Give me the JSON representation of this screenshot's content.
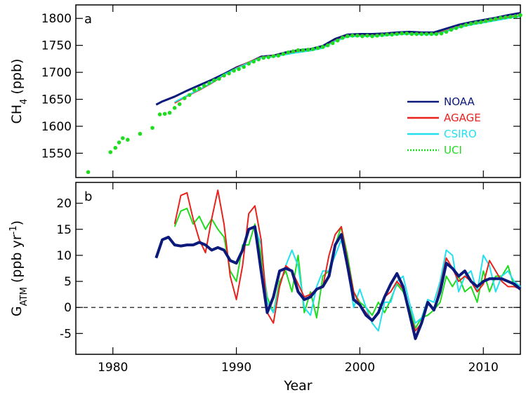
{
  "chart_data": [
    {
      "type": "line",
      "panel": "a",
      "ylabel_main": "CH",
      "ylabel_sub": "4",
      "ylabel_unit": " (ppb)",
      "xlim": [
        1977,
        2013
      ],
      "ylim": [
        1505,
        1825
      ],
      "yticks": [
        1550,
        1600,
        1650,
        1700,
        1750,
        1800
      ],
      "legend_position": "right",
      "series": [
        {
          "name": "NOAA",
          "color": "#0b1a7a",
          "style": "solid",
          "x": [
            1983.5,
            1984,
            1985,
            1986,
            1987,
            1988,
            1989,
            1990,
            1991,
            1992,
            1993,
            1994,
            1995,
            1996,
            1997,
            1998,
            1999,
            2000,
            2001,
            2002,
            2003,
            2004,
            2005,
            2006,
            2007,
            2008,
            2009,
            2010,
            2011,
            2012,
            2013
          ],
          "y": [
            1640,
            1646,
            1655,
            1666,
            1676,
            1686,
            1697,
            1709,
            1718,
            1729,
            1731,
            1737,
            1741,
            1743,
            1749,
            1762,
            1770,
            1771,
            1771,
            1772,
            1774,
            1775,
            1774,
            1774,
            1781,
            1788,
            1793,
            1797,
            1801,
            1806,
            1810
          ]
        },
        {
          "name": "AGAGE",
          "color": "#e8221c",
          "style": "solid",
          "x": [
            1985,
            1986,
            1987,
            1988,
            1989,
            1990,
            1991,
            1992,
            1993,
            1994,
            1995,
            1996,
            1997,
            1998,
            1999,
            2000,
            2001,
            2002,
            2003,
            2004,
            2005,
            2006,
            2007,
            2008,
            2009,
            2010,
            2011,
            2012,
            2013
          ],
          "y": [
            1643,
            1656,
            1667,
            1680,
            1695,
            1708,
            1719,
            1728,
            1730,
            1734,
            1738,
            1740,
            1746,
            1759,
            1767,
            1768,
            1768,
            1769,
            1771,
            1772,
            1771,
            1771,
            1777,
            1784,
            1789,
            1793,
            1797,
            1802,
            1805
          ]
        },
        {
          "name": "CSIRO",
          "color": "#22e0f0",
          "style": "solid",
          "x": [
            1985,
            1986,
            1987,
            1988,
            1989,
            1990,
            1991,
            1992,
            1993,
            1994,
            1995,
            1996,
            1997,
            1998,
            1999,
            2000,
            2001,
            2002,
            2003,
            2004,
            2005,
            2006,
            2007,
            2008,
            2009,
            2010,
            2011,
            2012,
            2013
          ],
          "y": [
            1645,
            1657,
            1668,
            1681,
            1696,
            1707,
            1718,
            1727,
            1729,
            1733,
            1737,
            1740,
            1745,
            1758,
            1766,
            1767,
            1767,
            1768,
            1770,
            1771,
            1770,
            1770,
            1776,
            1783,
            1788,
            1792,
            1796,
            1800,
            1804
          ]
        },
        {
          "name": "UCI",
          "color": "#1fdc1f",
          "style": "dotted",
          "points_x": [
            1978,
            1979.8,
            1980.2,
            1980.5,
            1980.8,
            1981.2,
            1982.2,
            1983.2,
            1983.8,
            1984.2,
            1984.6,
            1985,
            1985.4,
            1985.8,
            1986.2,
            1986.6,
            1987,
            1987.4,
            1987.8,
            1988.2,
            1988.6,
            1989,
            1989.4,
            1989.8,
            1990.2,
            1990.6,
            1991,
            1991.4,
            1991.8,
            1992.2,
            1992.6,
            1993,
            1993.4,
            1993.8,
            1994.2,
            1994.6,
            1995,
            1995.4,
            1995.8,
            1996.2,
            1996.6,
            1997,
            1997.4,
            1997.8,
            1998.2,
            1998.6,
            1999,
            1999.4,
            1999.8,
            2000.2,
            2000.6,
            2001,
            2001.4,
            2001.8,
            2002.2,
            2002.6,
            2003,
            2003.4,
            2003.8,
            2004.2,
            2004.6,
            2005,
            2005.4,
            2005.8,
            2006.2,
            2006.6,
            2007,
            2007.4,
            2007.8,
            2008.2,
            2008.6,
            2009,
            2009.4,
            2009.8,
            2010.2,
            2010.6,
            2011,
            2011.4,
            2011.8,
            2012.2,
            2012.6,
            2013
          ],
          "points_y": [
            1515,
            1552,
            1560,
            1570,
            1578,
            1575,
            1586,
            1597,
            1622,
            1623,
            1625,
            1634,
            1641,
            1652,
            1658,
            1667,
            1670,
            1675,
            1680,
            1685,
            1688,
            1694,
            1698,
            1703,
            1706,
            1710,
            1716,
            1720,
            1724,
            1727,
            1728,
            1730,
            1731,
            1734,
            1737,
            1739,
            1741,
            1741,
            1742,
            1743,
            1745,
            1747,
            1750,
            1754,
            1759,
            1764,
            1767,
            1768,
            1768,
            1767,
            1768,
            1767,
            1768,
            1769,
            1770,
            1770,
            1771,
            1772,
            1772,
            1771,
            1771,
            1771,
            1771,
            1771,
            1771,
            1772,
            1775,
            1779,
            1782,
            1785,
            1788,
            1790,
            1792,
            1793,
            1795,
            1797,
            1799,
            1801,
            1802,
            1803,
            1804,
            1806
          ]
        }
      ]
    },
    {
      "type": "line",
      "panel": "b",
      "ylabel_main": "G",
      "ylabel_sub": "ATM",
      "ylabel_unit": " (ppb yr",
      "ylabel_sup": "-1",
      "ylabel_close": ")",
      "xlabel": "Year",
      "xlim": [
        1977,
        2013
      ],
      "ylim": [
        -9,
        24
      ],
      "yticks": [
        -5,
        0,
        5,
        10,
        15,
        20
      ],
      "xticks": [
        1980,
        1990,
        2000,
        2010
      ],
      "zero_line": "dashed",
      "series": [
        {
          "name": "NOAA",
          "color": "#0b1a7a",
          "x": [
            1983.5,
            1984,
            1984.5,
            1985,
            1985.5,
            1986,
            1986.5,
            1987,
            1987.5,
            1988,
            1988.5,
            1989,
            1989.5,
            1990,
            1990.5,
            1991,
            1991.5,
            1992,
            1992.5,
            1993,
            1993.5,
            1994,
            1994.5,
            1995,
            1995.5,
            1996,
            1996.5,
            1997,
            1997.5,
            1998,
            1998.5,
            1999,
            1999.5,
            2000,
            2000.5,
            2001,
            2001.5,
            2002,
            2002.5,
            2003,
            2003.5,
            2004,
            2004.5,
            2005,
            2005.5,
            2006,
            2006.5,
            2007,
            2007.5,
            2008,
            2008.5,
            2009,
            2009.5,
            2010,
            2010.5,
            2011,
            2011.5,
            2012,
            2012.5,
            2013
          ],
          "y": [
            9.5,
            13,
            13.5,
            12,
            11.8,
            12,
            12,
            12.5,
            12,
            11,
            11.5,
            11,
            9,
            8.5,
            11,
            15,
            15.5,
            7,
            -1,
            2,
            7,
            7.5,
            7,
            3,
            1.5,
            2,
            3.5,
            4,
            6,
            12,
            14,
            8,
            1.5,
            0.5,
            -1.5,
            -2.5,
            -1,
            2,
            4.5,
            6.5,
            4,
            -1,
            -6,
            -3,
            1,
            -0.5,
            3,
            8.5,
            7.5,
            6,
            7,
            5,
            4,
            5,
            5.5,
            5.5,
            5.5,
            5,
            4.5,
            3.5
          ]
        },
        {
          "name": "AGAGE",
          "color": "#e8221c",
          "x": [
            1985,
            1985.5,
            1986,
            1986.5,
            1987,
            1987.5,
            1988,
            1988.5,
            1989,
            1989.5,
            1990,
            1990.5,
            1991,
            1991.5,
            1992,
            1992.5,
            1993,
            1993.5,
            1994,
            1994.5,
            1995,
            1995.5,
            1996,
            1996.5,
            1997,
            1997.5,
            1998,
            1998.5,
            1999,
            1999.5,
            2000,
            2000.5,
            2001,
            2001.5,
            2002,
            2002.5,
            2003,
            2003.5,
            2004,
            2004.5,
            2005,
            2005.5,
            2006,
            2006.5,
            2007,
            2007.5,
            2008,
            2008.5,
            2009,
            2009.5,
            2010,
            2010.5,
            2011,
            2011.5,
            2012,
            2012.5,
            2013
          ],
          "y": [
            16,
            21.5,
            22,
            17,
            13,
            10.5,
            17,
            22.5,
            16,
            6,
            1.5,
            8,
            18,
            19.5,
            13,
            -1,
            -3,
            4,
            8,
            7,
            4.5,
            2,
            2.5,
            3.5,
            4,
            10,
            14,
            15.5,
            9,
            3,
            0.5,
            -1,
            -2.5,
            -1,
            2,
            3,
            5,
            3.5,
            -1,
            -4.5,
            -3,
            1,
            -0.5,
            4,
            9.5,
            7.5,
            5,
            6,
            5,
            3,
            4.5,
            9,
            7,
            5,
            4,
            4,
            3.5
          ]
        },
        {
          "name": "CSIRO",
          "color": "#22e0f0",
          "x": [
            1991.5,
            1992,
            1992.5,
            1993,
            1993.5,
            1994,
            1994.5,
            1995,
            1995.5,
            1996,
            1996.5,
            1997,
            1997.5,
            1998,
            1998.5,
            1999,
            1999.5,
            2000,
            2000.5,
            2001,
            2001.5,
            2002,
            2002.5,
            2003,
            2003.5,
            2004,
            2004.5,
            2005,
            2005.5,
            2006,
            2006.5,
            2007,
            2007.5,
            2008,
            2008.5,
            2009,
            2009.5,
            2010,
            2010.5,
            2011,
            2011.5,
            2012,
            2012.5,
            2013
          ],
          "y": [
            15.5,
            12,
            1,
            -1,
            4,
            8,
            11,
            8,
            0,
            -1.5,
            4,
            7,
            7,
            10,
            13,
            8,
            0,
            3.5,
            0,
            -3,
            -4.5,
            1,
            1,
            5,
            6,
            1,
            -3,
            -2,
            1.5,
            1,
            5,
            11,
            10,
            3,
            6,
            7,
            3,
            10,
            8,
            3,
            6,
            7,
            5,
            4
          ]
        },
        {
          "name": "UCI",
          "color": "#1fdc1f",
          "x": [
            1985,
            1985.5,
            1986,
            1986.5,
            1987,
            1987.5,
            1988,
            1988.5,
            1989,
            1989.5,
            1990,
            1990.5,
            1991,
            1991.5,
            1992,
            1992.5,
            1993,
            1993.5,
            1994,
            1994.5,
            1995,
            1995.5,
            1996,
            1996.5,
            1997,
            1997.5,
            1998,
            1998.5,
            1999,
            1999.5,
            2000,
            2000.5,
            2001,
            2001.5,
            2002,
            2002.5,
            2003,
            2003.5,
            2004,
            2004.5,
            2005,
            2005.5,
            2006,
            2006.5,
            2007,
            2007.5,
            2008,
            2008.5,
            2009,
            2009.5,
            2010,
            2010.5,
            2011,
            2011.5,
            2012,
            2012.5,
            2013
          ],
          "y": [
            15.5,
            18.5,
            19,
            16,
            17.5,
            15,
            17,
            15,
            13.5,
            7,
            5,
            12,
            12,
            16,
            10,
            2,
            -1,
            5,
            7,
            3,
            10,
            -1,
            3,
            -2,
            6,
            7,
            12,
            15.5,
            10,
            3,
            1,
            0,
            -1.5,
            1,
            -1,
            1.5,
            4.5,
            3,
            0,
            -4,
            -2,
            -1.5,
            -0.5,
            1,
            6,
            4,
            6,
            3,
            4,
            1,
            7,
            3,
            6,
            6,
            8,
            4,
            4
          ]
        }
      ]
    }
  ]
}
